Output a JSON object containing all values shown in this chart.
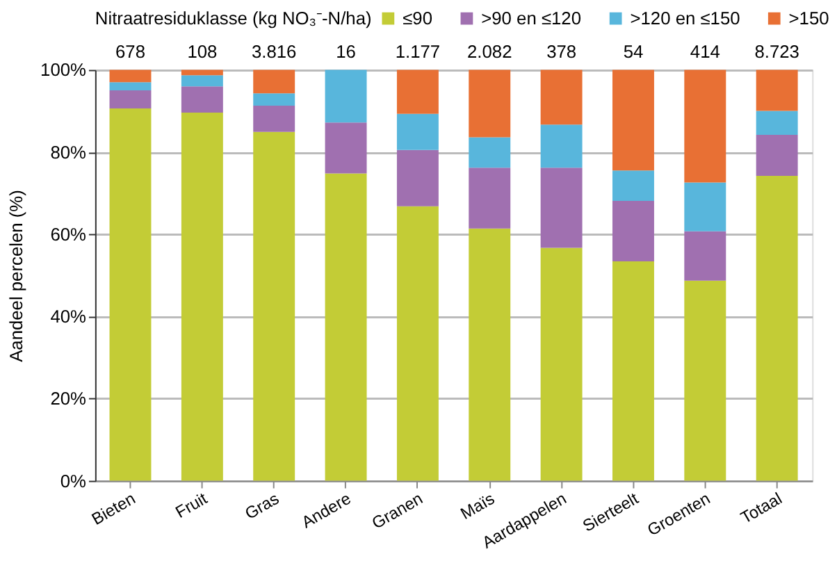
{
  "chart_data": {
    "type": "bar",
    "stacked": true,
    "ylabel": "Aandeel percelen (%)",
    "legend_title": "Nitraatresiduklasse (kg NO₃⁻-N/ha)",
    "legend": "top",
    "categories": [
      "Bieten",
      "Fruit",
      "Gras",
      "Andere",
      "Granen",
      "Maïs",
      "Aardappelen",
      "Sierteelt",
      "Groenten",
      "Totaal"
    ],
    "series": [
      {
        "name": "≤90",
        "color": "#c3cc36",
        "values": [
          90.6,
          89.6,
          84.9,
          74.8,
          66.8,
          61.4,
          56.7,
          53.4,
          48.7,
          74.2
        ]
      },
      {
        "name": ">90 en ≤120",
        "color": "#a070b0",
        "values": [
          4.4,
          6.4,
          6.4,
          12.4,
          13.7,
          14.8,
          19.5,
          14.7,
          12.0,
          10.0
        ]
      },
      {
        "name": ">120 en ≤150",
        "color": "#58b6dc",
        "values": [
          2.0,
          2.7,
          3.0,
          12.8,
          8.8,
          7.4,
          10.5,
          7.4,
          11.9,
          5.8
        ]
      },
      {
        "name": ">150",
        "color": "#e87034",
        "values": [
          3.0,
          1.3,
          5.7,
          0,
          10.7,
          16.4,
          13.3,
          24.5,
          27.4,
          10.0
        ]
      }
    ],
    "annotations": [
      "678",
      "108",
      "3.816",
      "16",
      "1.177",
      "2.082",
      "378",
      "54",
      "414",
      "8.723"
    ],
    "ylim": [
      0,
      100
    ],
    "yticks": [
      {
        "value": 0,
        "label": "0%"
      },
      {
        "value": 20,
        "label": "20%"
      },
      {
        "value": 40,
        "label": "40%"
      },
      {
        "value": 60,
        "label": "60%"
      },
      {
        "value": 80,
        "label": "80%"
      },
      {
        "value": 100,
        "label": "100%"
      }
    ],
    "grid": "y"
  }
}
